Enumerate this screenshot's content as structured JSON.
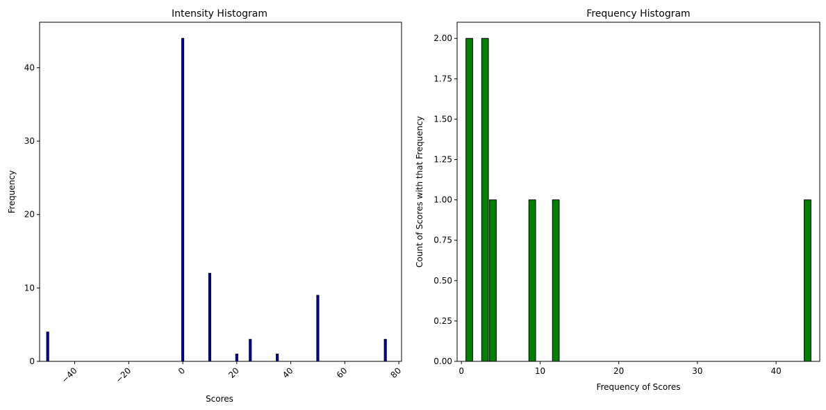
{
  "chart_data": [
    {
      "type": "bar",
      "title": "Intensity Histogram",
      "xlabel": "Scores",
      "ylabel": "Frequency",
      "xlim": [
        -53,
        81
      ],
      "ylim": [
        0,
        46.2
      ],
      "xticks": [
        -40,
        -20,
        0,
        20,
        40,
        60,
        80
      ],
      "xtick_labels": [
        "−40",
        "−20",
        "0",
        "20",
        "40",
        "60",
        "80"
      ],
      "xtick_rotation": 45,
      "yticks": [
        0,
        10,
        20,
        30,
        40
      ],
      "ytick_labels": [
        "0",
        "10",
        "20",
        "30",
        "40"
      ],
      "bar_color": "#0000cc",
      "edge_color": "#000000",
      "bar_width": 0.8,
      "grid": false,
      "x": [
        -50,
        0,
        10,
        20,
        25,
        35,
        50,
        75
      ],
      "values": [
        4,
        44,
        12,
        1,
        3,
        1,
        9,
        3
      ]
    },
    {
      "type": "bar",
      "title": "Frequency Histogram",
      "xlabel": "Frequency of Scores",
      "ylabel": "Count of Scores with that Frequency",
      "xlim": [
        -0.55,
        45.55
      ],
      "ylim": [
        0,
        2.1
      ],
      "xticks": [
        0,
        10,
        20,
        30,
        40
      ],
      "xtick_labels": [
        "0",
        "10",
        "20",
        "30",
        "40"
      ],
      "yticks": [
        0,
        0.25,
        0.5,
        0.75,
        1.0,
        1.25,
        1.5,
        1.75,
        2.0
      ],
      "ytick_labels": [
        "0.00",
        "0.25",
        "0.50",
        "0.75",
        "1.00",
        "1.25",
        "1.50",
        "1.75",
        "2.00"
      ],
      "bar_color": "#008000",
      "edge_color": "#000000",
      "bar_width": 0.86,
      "grid": false,
      "x": [
        1,
        3,
        4,
        9,
        12,
        44
      ],
      "values": [
        2,
        2,
        1,
        1,
        1,
        1
      ]
    }
  ]
}
